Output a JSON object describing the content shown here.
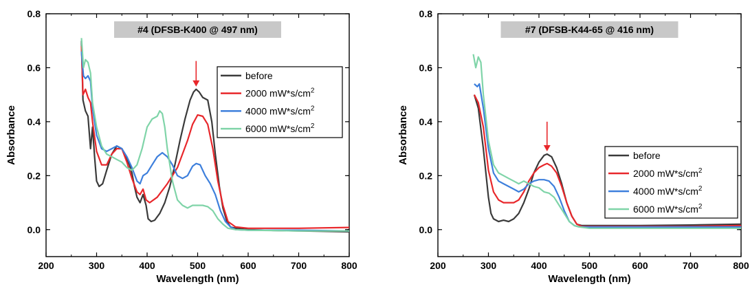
{
  "chart_data": [
    {
      "type": "line",
      "title": "#4 (DFSB-K400 @ 497 nm)",
      "xlabel": "Wavelength (nm)",
      "ylabel": "Absorbance",
      "xlim": [
        200,
        800
      ],
      "ylim": [
        -0.1,
        0.8
      ],
      "xticks": [
        200,
        300,
        400,
        500,
        600,
        700,
        800
      ],
      "yticks": [
        0.0,
        0.2,
        0.4,
        0.6,
        0.8
      ],
      "tick_labels_x": [
        "200",
        "300",
        "400",
        "500",
        "600",
        "700",
        "800"
      ],
      "tick_labels_y": [
        "0.0",
        "0.2",
        "0.4",
        "0.6",
        "0.8"
      ],
      "grid": false,
      "legend_position": "top-right",
      "annotation": {
        "type": "arrow",
        "x": 497,
        "y_from": 0.625,
        "y_to": 0.53,
        "color": "#e8272b"
      },
      "series": [
        {
          "name": "before",
          "legend": [
            "before",
            "",
            ""
          ],
          "color": "#3a3a3a",
          "x": [
            270,
            273,
            278,
            283,
            288,
            292,
            296,
            300,
            305,
            312,
            320,
            330,
            340,
            350,
            358,
            365,
            370,
            375,
            380,
            386,
            392,
            398,
            402,
            408,
            415,
            425,
            435,
            445,
            455,
            465,
            475,
            485,
            492,
            497,
            503,
            510,
            520,
            528,
            535,
            543,
            550,
            558,
            565,
            575,
            600,
            650,
            700,
            800
          ],
          "y": [
            0.7,
            0.48,
            0.44,
            0.42,
            0.3,
            0.38,
            0.27,
            0.18,
            0.16,
            0.17,
            0.22,
            0.28,
            0.31,
            0.3,
            0.27,
            0.24,
            0.21,
            0.16,
            0.12,
            0.1,
            0.13,
            0.09,
            0.04,
            0.03,
            0.035,
            0.06,
            0.1,
            0.16,
            0.24,
            0.33,
            0.41,
            0.48,
            0.51,
            0.52,
            0.51,
            0.49,
            0.48,
            0.4,
            0.28,
            0.16,
            0.08,
            0.03,
            0.01,
            0.005,
            0.0,
            -0.003,
            -0.005,
            -0.008
          ]
        },
        {
          "name": "2000 mW*s/cm2",
          "legend": [
            "2000 mW*s/cm",
            "2",
            ""
          ],
          "color": "#e8272b",
          "x": [
            270,
            273,
            278,
            283,
            288,
            292,
            300,
            310,
            320,
            330,
            340,
            350,
            360,
            370,
            380,
            386,
            392,
            398,
            405,
            420,
            440,
            460,
            480,
            490,
            500,
            510,
            520,
            530,
            540,
            550,
            560,
            575,
            600,
            700,
            800
          ],
          "y": [
            0.68,
            0.5,
            0.52,
            0.49,
            0.47,
            0.4,
            0.29,
            0.24,
            0.24,
            0.28,
            0.3,
            0.3,
            0.25,
            0.19,
            0.14,
            0.13,
            0.15,
            0.11,
            0.1,
            0.12,
            0.17,
            0.23,
            0.33,
            0.39,
            0.425,
            0.42,
            0.39,
            0.3,
            0.18,
            0.09,
            0.03,
            0.01,
            0.005,
            0.005,
            0.008
          ]
        },
        {
          "name": "4000 mW*s/cm2",
          "legend": [
            "4000 mW*s/cm",
            "2",
            ""
          ],
          "color": "#3d7fdc",
          "x": [
            270,
            274,
            278,
            283,
            288,
            292,
            300,
            310,
            320,
            330,
            340,
            350,
            360,
            370,
            380,
            386,
            392,
            400,
            410,
            420,
            430,
            440,
            450,
            460,
            470,
            480,
            490,
            497,
            505,
            515,
            525,
            535,
            545,
            555,
            565,
            575,
            600,
            700,
            800
          ],
          "y": [
            0.66,
            0.57,
            0.56,
            0.57,
            0.55,
            0.45,
            0.35,
            0.3,
            0.29,
            0.3,
            0.31,
            0.3,
            0.27,
            0.23,
            0.18,
            0.17,
            0.2,
            0.21,
            0.24,
            0.27,
            0.285,
            0.27,
            0.24,
            0.2,
            0.19,
            0.2,
            0.235,
            0.245,
            0.24,
            0.2,
            0.17,
            0.13,
            0.07,
            0.03,
            0.01,
            0.0,
            -0.002,
            -0.002,
            -0.005
          ]
        },
        {
          "name": "6000 mW*s/cm2",
          "legend": [
            "6000 mW*s/cm",
            "2",
            ""
          ],
          "color": "#7fd4a8",
          "x": [
            270,
            274,
            278,
            283,
            288,
            292,
            300,
            310,
            320,
            330,
            340,
            350,
            360,
            370,
            380,
            390,
            400,
            410,
            420,
            425,
            430,
            435,
            440,
            450,
            460,
            470,
            480,
            490,
            500,
            510,
            520,
            530,
            540,
            550,
            560,
            575,
            600,
            700,
            800
          ],
          "y": [
            0.71,
            0.6,
            0.63,
            0.62,
            0.58,
            0.47,
            0.38,
            0.31,
            0.28,
            0.27,
            0.26,
            0.25,
            0.23,
            0.22,
            0.24,
            0.3,
            0.38,
            0.41,
            0.42,
            0.44,
            0.43,
            0.38,
            0.3,
            0.18,
            0.11,
            0.09,
            0.08,
            0.09,
            0.09,
            0.09,
            0.085,
            0.07,
            0.04,
            0.02,
            0.005,
            0.0,
            -0.002,
            -0.005,
            -0.005
          ]
        }
      ]
    },
    {
      "type": "line",
      "title": "#7 (DFSB-K44-65 @ 416 nm)",
      "xlabel": "Wavelength (nm)",
      "ylabel": "Absorbance",
      "xlim": [
        200,
        800
      ],
      "ylim": [
        -0.1,
        0.8
      ],
      "xticks": [
        200,
        300,
        400,
        500,
        600,
        700,
        800
      ],
      "yticks": [
        0.0,
        0.2,
        0.4,
        0.6,
        0.8
      ],
      "tick_labels_x": [
        "200",
        "300",
        "400",
        "500",
        "600",
        "700",
        "800"
      ],
      "tick_labels_y": [
        "0.0",
        "0.2",
        "0.4",
        "0.6",
        "0.8"
      ],
      "grid": false,
      "legend_position": "bottom-right",
      "annotation": {
        "type": "arrow",
        "x": 416,
        "y_from": 0.4,
        "y_to": 0.29,
        "color": "#e8272b"
      },
      "series": [
        {
          "name": "before",
          "legend": [
            "before",
            "",
            ""
          ],
          "color": "#3a3a3a",
          "x": [
            272,
            280,
            290,
            300,
            305,
            310,
            320,
            330,
            340,
            350,
            360,
            370,
            380,
            390,
            400,
            410,
            416,
            425,
            435,
            445,
            455,
            465,
            475,
            485,
            500,
            600,
            700,
            800
          ],
          "y": [
            0.5,
            0.45,
            0.3,
            0.12,
            0.06,
            0.04,
            0.03,
            0.035,
            0.03,
            0.04,
            0.06,
            0.1,
            0.15,
            0.21,
            0.25,
            0.275,
            0.28,
            0.27,
            0.23,
            0.17,
            0.1,
            0.05,
            0.02,
            0.015,
            0.015,
            0.015,
            0.017,
            0.02
          ]
        },
        {
          "name": "2000 mW*s/cm2",
          "legend": [
            "2000 mW*s/cm",
            "2",
            ""
          ],
          "color": "#e8272b",
          "x": [
            272,
            280,
            290,
            300,
            310,
            320,
            330,
            340,
            350,
            360,
            370,
            380,
            390,
            400,
            410,
            416,
            425,
            435,
            445,
            455,
            465,
            475,
            485,
            500,
            600,
            700,
            800
          ],
          "y": [
            0.5,
            0.47,
            0.38,
            0.22,
            0.14,
            0.11,
            0.1,
            0.1,
            0.1,
            0.11,
            0.14,
            0.18,
            0.21,
            0.23,
            0.24,
            0.245,
            0.235,
            0.21,
            0.16,
            0.1,
            0.05,
            0.02,
            0.012,
            0.012,
            0.012,
            0.012,
            0.015
          ]
        },
        {
          "name": "4000 mW*s/cm2",
          "legend": [
            "4000 mW*s/cm",
            "2",
            ""
          ],
          "color": "#3d7fdc",
          "x": [
            272,
            278,
            282,
            290,
            300,
            310,
            320,
            330,
            340,
            350,
            360,
            370,
            380,
            390,
            400,
            410,
            420,
            430,
            440,
            450,
            460,
            470,
            480,
            500,
            600,
            700,
            800
          ],
          "y": [
            0.54,
            0.53,
            0.54,
            0.45,
            0.3,
            0.21,
            0.18,
            0.17,
            0.16,
            0.15,
            0.14,
            0.15,
            0.17,
            0.18,
            0.185,
            0.185,
            0.18,
            0.16,
            0.12,
            0.07,
            0.03,
            0.015,
            0.01,
            0.01,
            0.01,
            0.01,
            0.01
          ]
        },
        {
          "name": "6000 mW*s/cm2",
          "legend": [
            "6000 mW*s/cm",
            "2",
            ""
          ],
          "color": "#7fd4a8",
          "x": [
            270,
            275,
            280,
            285,
            290,
            300,
            310,
            320,
            330,
            340,
            350,
            360,
            370,
            380,
            390,
            400,
            410,
            420,
            430,
            440,
            450,
            460,
            470,
            480,
            500,
            600,
            700,
            800
          ],
          "y": [
            0.65,
            0.6,
            0.64,
            0.62,
            0.5,
            0.33,
            0.24,
            0.21,
            0.2,
            0.19,
            0.18,
            0.17,
            0.18,
            0.17,
            0.16,
            0.155,
            0.14,
            0.135,
            0.12,
            0.09,
            0.06,
            0.03,
            0.015,
            0.01,
            0.005,
            0.005,
            0.005,
            0.005
          ]
        }
      ]
    }
  ]
}
